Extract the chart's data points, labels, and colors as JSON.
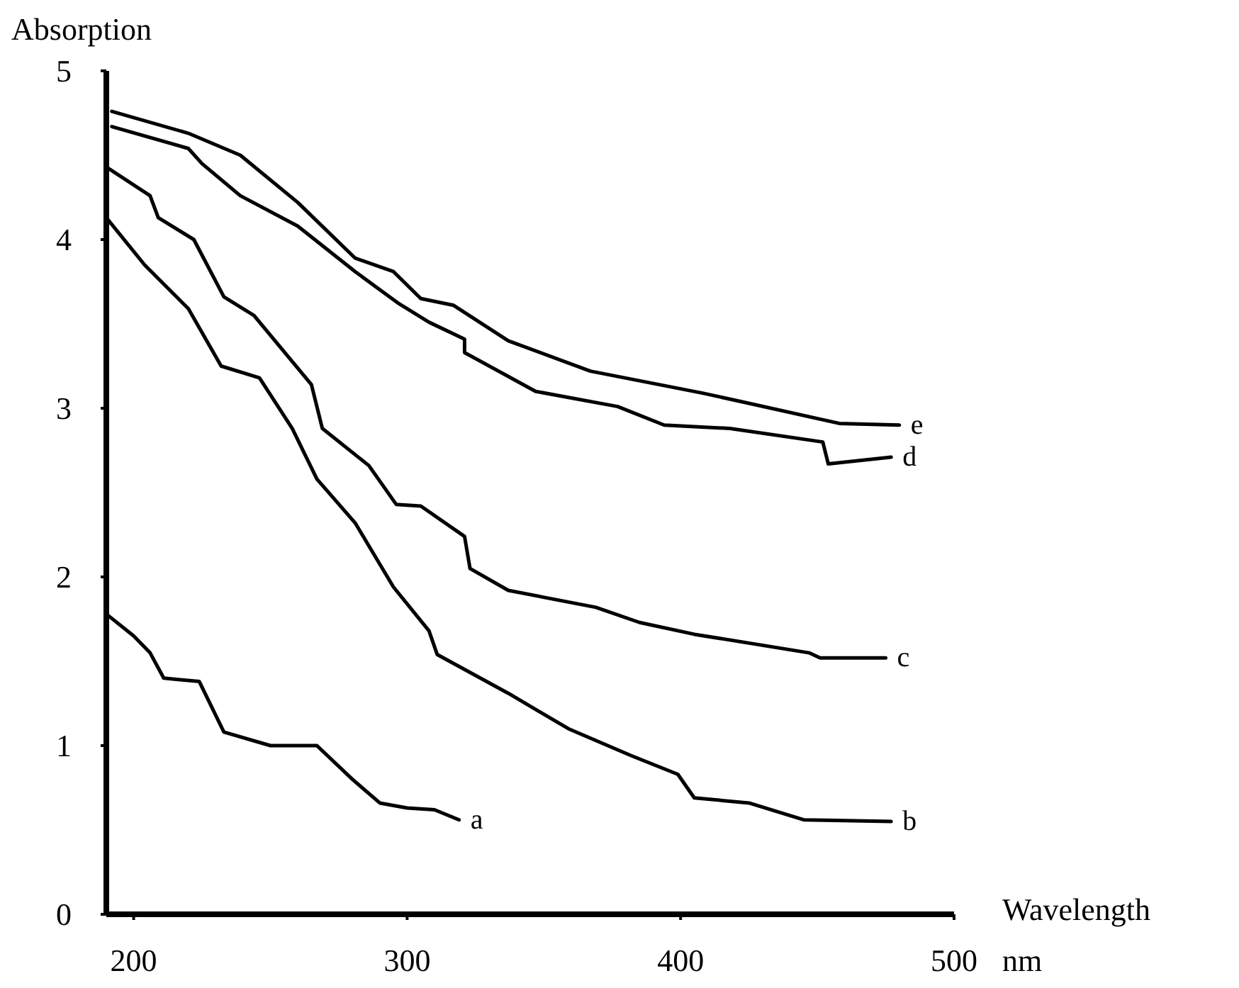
{
  "chart_data": {
    "type": "line",
    "ylabel": "Absorption",
    "xlabel": "Wavelength",
    "annotations": [
      "nm"
    ],
    "xlim": [
      190,
      500
    ],
    "xticks": [
      200,
      300,
      400,
      500
    ],
    "ylim": [
      0,
      5
    ],
    "yticks": [
      0,
      1,
      2,
      3,
      4,
      5
    ],
    "grid": false,
    "legend": false,
    "marker": "none",
    "line_style": "solid",
    "series": [
      {
        "name": "a",
        "color": "#000000",
        "x": [
          190,
          200,
          206,
          211,
          224,
          233,
          250,
          267,
          280,
          290,
          300,
          310,
          319
        ],
        "values": [
          1.78,
          1.65,
          1.55,
          1.4,
          1.38,
          1.08,
          1.0,
          1.0,
          0.8,
          0.66,
          0.63,
          0.62,
          0.56
        ]
      },
      {
        "name": "b",
        "color": "#000000",
        "x": [
          190,
          204,
          220,
          232,
          246,
          258,
          267,
          281,
          295,
          308,
          311,
          337,
          359,
          382,
          399,
          405,
          425,
          445,
          477
        ],
        "values": [
          4.13,
          3.85,
          3.59,
          3.25,
          3.18,
          2.88,
          2.58,
          2.32,
          1.94,
          1.68,
          1.54,
          1.31,
          1.1,
          0.94,
          0.83,
          0.69,
          0.66,
          0.56,
          0.55
        ]
      },
      {
        "name": "c",
        "color": "#000000",
        "x": [
          190,
          206,
          209,
          222,
          233,
          244,
          265,
          269,
          286,
          296,
          305,
          321,
          323,
          337,
          369,
          385,
          405,
          447,
          451,
          475
        ],
        "values": [
          4.43,
          4.26,
          4.13,
          4.0,
          3.66,
          3.55,
          3.14,
          2.88,
          2.66,
          2.43,
          2.42,
          2.24,
          2.05,
          1.92,
          1.82,
          1.73,
          1.66,
          1.55,
          1.52,
          1.52
        ]
      },
      {
        "name": "d",
        "color": "#000000",
        "x": [
          192,
          220,
          225,
          239,
          260,
          281,
          297,
          308,
          321,
          321,
          347,
          377,
          394,
          418,
          452,
          454,
          477
        ],
        "values": [
          4.67,
          4.54,
          4.45,
          4.26,
          4.08,
          3.81,
          3.62,
          3.51,
          3.41,
          3.33,
          3.1,
          3.01,
          2.9,
          2.88,
          2.8,
          2.67,
          2.71
        ]
      },
      {
        "name": "e",
        "color": "#000000",
        "x": [
          192,
          220,
          239,
          260,
          281,
          295,
          305,
          317,
          337,
          367,
          408,
          422,
          458,
          480
        ],
        "values": [
          4.76,
          4.63,
          4.5,
          4.22,
          3.89,
          3.81,
          3.65,
          3.61,
          3.4,
          3.22,
          3.09,
          3.04,
          2.91,
          2.9
        ]
      }
    ]
  }
}
